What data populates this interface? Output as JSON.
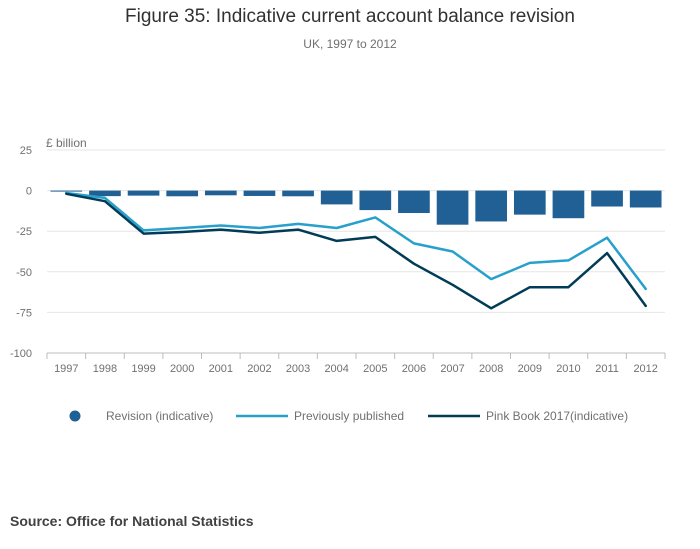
{
  "header": {
    "title": "Figure 35: Indicative current account balance revision",
    "subtitle": "UK, 1997 to 2012"
  },
  "footer": {
    "source": "Source: Office for National Statistics"
  },
  "colors": {
    "revision": "#206095",
    "previous": "#27a0cc",
    "pinkbook": "#003c57",
    "grid": "#e6e6e6",
    "axis": "#bcbcbc",
    "text": "#707071"
  },
  "chart_data": {
    "type": "bar",
    "title": "Figure 35: Indicative current account balance revision",
    "subtitle": "UK, 1997 to 2012",
    "ylabel": "£ billion",
    "xlabel": "",
    "ylim": [
      -100,
      25
    ],
    "yticks": [
      25,
      0,
      -25,
      -50,
      -75,
      -100
    ],
    "grid": true,
    "legend_position": "bottom",
    "categories": [
      "1997",
      "1998",
      "1999",
      "2000",
      "2001",
      "2002",
      "2003",
      "2004",
      "2005",
      "2006",
      "2007",
      "2008",
      "2009",
      "2010",
      "2011",
      "2012"
    ],
    "series": [
      {
        "name": "Revision (indicative)",
        "type": "bar",
        "values": [
          -0.6,
          -3.4,
          -3.1,
          -3.5,
          -2.9,
          -3.3,
          -3.5,
          -8.5,
          -12.0,
          -13.8,
          -21.0,
          -19.0,
          -14.8,
          -17.0,
          -9.8,
          -10.4
        ]
      },
      {
        "name": "Previously published",
        "type": "line",
        "values": [
          -1.5,
          -4.5,
          -24.5,
          -23.0,
          -21.5,
          -23.0,
          -20.5,
          -23.0,
          -16.5,
          -32.5,
          -37.5,
          -54.5,
          -44.5,
          -43.0,
          -29.0,
          -60.5
        ]
      },
      {
        "name": "Pink Book 2017(indicative)",
        "type": "line",
        "values": [
          -2.0,
          -6.5,
          -26.5,
          -25.5,
          -24.0,
          -26.0,
          -24.0,
          -31.0,
          -28.5,
          -45.0,
          -58.0,
          -72.5,
          -59.5,
          -59.5,
          -38.5,
          -71.0
        ]
      }
    ]
  }
}
